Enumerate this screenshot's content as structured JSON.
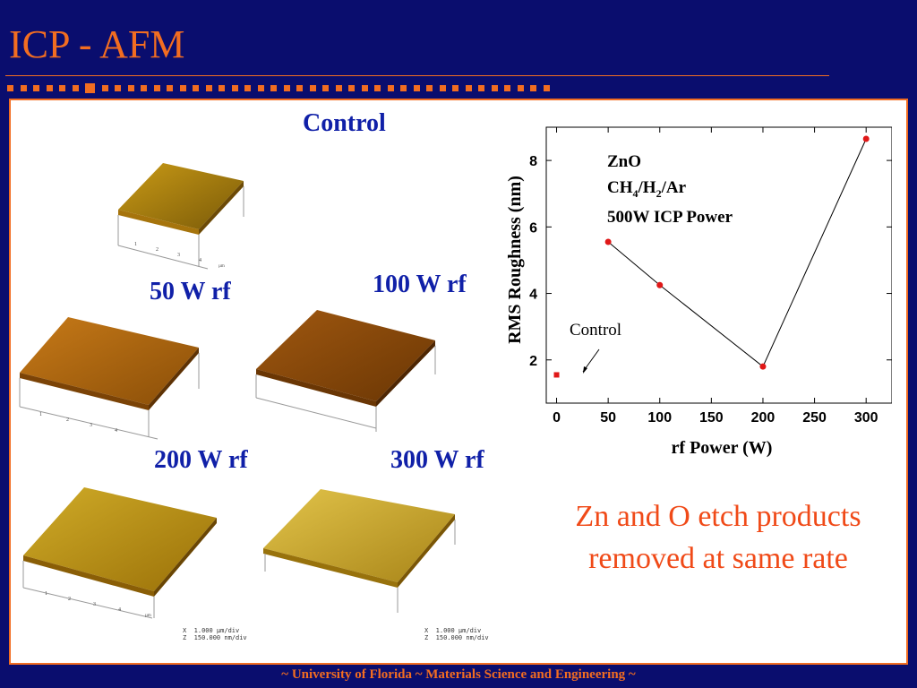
{
  "slide": {
    "title": "ICP - AFM",
    "footer": "~ University of Florida ~ Materials Science and Engineering ~"
  },
  "images": {
    "control_label": "Control",
    "w50_label": "50 W rf",
    "w100_label": "100 W rf",
    "w200_label": "200 W rf",
    "w300_label": "300 W rf",
    "ticks": [
      "1",
      "2",
      "3",
      "4"
    ],
    "unit": "µm",
    "scale_note_1": "X  1.000 µm/div",
    "scale_note_2": "Z  150.000 nm/div"
  },
  "conclusion": "Zn and O etch products removed at same rate",
  "chart_data": {
    "type": "line",
    "xlabel": "rf Power (W)",
    "ylabel": "RMS Roughness (nm)",
    "xlim": [
      -10,
      325
    ],
    "ylim": [
      0.7,
      9.0
    ],
    "xticks": [
      0,
      50,
      100,
      150,
      200,
      250,
      300
    ],
    "yticks": [
      2,
      4,
      6,
      8
    ],
    "annotation_lines": [
      "ZnO",
      "CH4/H2/Ar",
      "500W ICP Power"
    ],
    "control_annotation": "Control",
    "control_point": {
      "x": 0,
      "y": 1.55
    },
    "series": [
      {
        "x": [
          50,
          100,
          200,
          300
        ],
        "y": [
          5.55,
          4.25,
          1.8,
          8.65
        ]
      }
    ],
    "colors": {
      "points": "#e01818",
      "line": "#000000"
    },
    "grid": false
  }
}
